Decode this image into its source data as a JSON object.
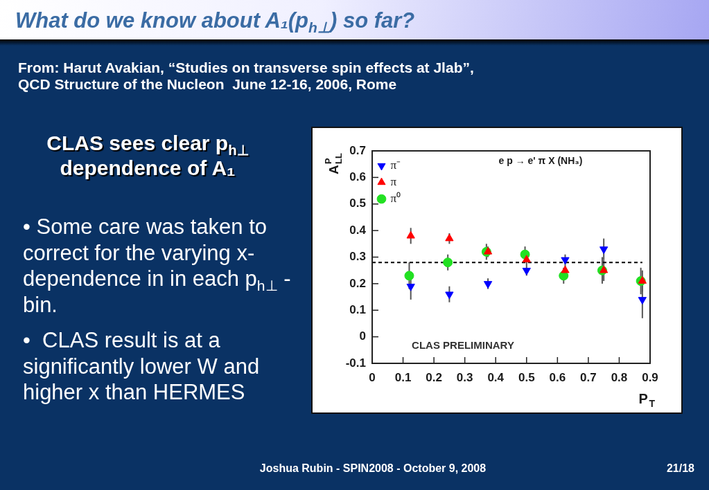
{
  "chart_data": {
    "type": "scatter",
    "title": "What do we know about A₁(p$_{h⊥}$) so far?",
    "subtitle": "From: Harut Avakian, “Studies on transverse spin effects at Jlab”,\nQCD Structure of the Nucleon  June 12-16, 2006, Rome",
    "xlabel": "P$_{T}$",
    "ylabel": "A$_{LL}$$^{P}$",
    "x": [
      0.125,
      0.25,
      0.375,
      0.5,
      0.625,
      0.75,
      0.875
    ],
    "xlim": [
      0,
      0.9
    ],
    "xticks": [
      0,
      0.1,
      0.2,
      0.3,
      0.4,
      0.5,
      0.6,
      0.7,
      0.8,
      0.9
    ],
    "ylim": [
      -0.1,
      0.7
    ],
    "yticks": [
      -0.1,
      0,
      0.1,
      0.2,
      0.3,
      0.4,
      0.5,
      0.6,
      0.7
    ],
    "legend": "top left",
    "series": [
      {
        "name": "π⁻",
        "color": "#0000ff",
        "marker": "triangle-down",
        "values": [
          0.19,
          0.16,
          0.2,
          0.25,
          0.29,
          0.33,
          0.14
        ],
        "errors": [
          0.05,
          0.03,
          0.02,
          0.02,
          0.02,
          0.04,
          0.07
        ]
      },
      {
        "name": "π",
        "color": "#ff0000",
        "marker": "triangle",
        "values": [
          0.38,
          0.37,
          0.32,
          0.29,
          0.25,
          0.25,
          0.21
        ],
        "errors": [
          0.03,
          0.02,
          0.02,
          0.02,
          0.02,
          0.04,
          0.04
        ]
      },
      {
        "name": "π⁰",
        "color": "#22e022",
        "marker": "circle",
        "x": [
          0.12,
          0.245,
          0.37,
          0.495,
          0.62,
          0.745,
          0.87
        ],
        "values": [
          0.23,
          0.28,
          0.32,
          0.31,
          0.23,
          0.25,
          0.21
        ],
        "errors": [
          0.05,
          0.03,
          0.03,
          0.03,
          0.03,
          0.05,
          0.05
        ]
      },
      {
        "type": "line",
        "color": "#000000",
        "marker": "none",
        "line_style": "dashed",
        "x": [
          0,
          0.875
        ],
        "values": [
          0.28,
          0.28
        ]
      }
    ],
    "annotations": [
      "CLAS sees clear p$_{h⊥}$\ndependence of A₁",
      "• Some care was taken to\ncorrect for the varying x-\ndependence in in each p$_{h⊥}$ -\nbin.",
      "•  CLAS result is at a\nsignificantly lower W and\nhigher x than HERMES",
      "e p → e' π X (NH₃)",
      "CLAS PRELIMINARY",
      "Joshua Rubin - SPIN2008 - October 9, 2008",
      "21/18"
    ]
  }
}
